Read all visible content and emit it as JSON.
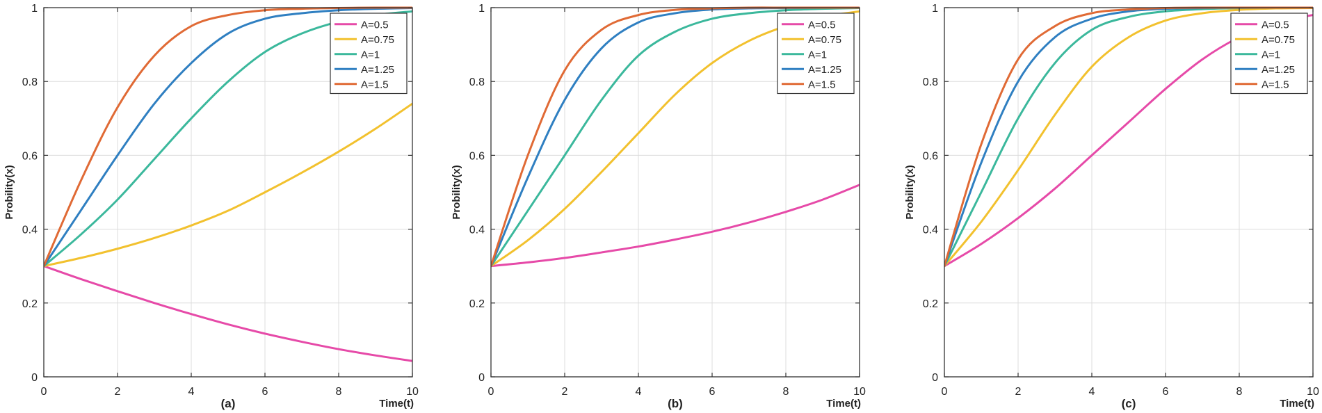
{
  "chart_data": [
    {
      "type": "line",
      "panel_label": "(a)",
      "xlabel": "Time(t)",
      "ylabel": "Probility(x)",
      "xlim": [
        0,
        10
      ],
      "ylim": [
        0,
        1
      ],
      "xticks": [
        "0",
        "2",
        "4",
        "6",
        "8",
        "10"
      ],
      "yticks": [
        "0",
        "0.2",
        "0.4",
        "0.6",
        "0.8",
        "1"
      ],
      "grid": true,
      "legend_position": "top-right",
      "x": [
        0,
        1,
        2,
        3,
        4,
        5,
        6,
        7,
        8,
        9,
        10
      ],
      "series": [
        {
          "name": "A=0.5",
          "color": "#e64aa8",
          "values": [
            0.3,
            0.265,
            0.232,
            0.2,
            0.17,
            0.142,
            0.117,
            0.095,
            0.075,
            0.058,
            0.043
          ]
        },
        {
          "name": "A=0.75",
          "color": "#f2c12e",
          "values": [
            0.3,
            0.322,
            0.347,
            0.376,
            0.41,
            0.45,
            0.5,
            0.553,
            0.61,
            0.672,
            0.74
          ]
        },
        {
          "name": "A=1",
          "color": "#3bb89c",
          "values": [
            0.3,
            0.385,
            0.48,
            0.59,
            0.7,
            0.8,
            0.88,
            0.93,
            0.962,
            0.98,
            0.99
          ]
        },
        {
          "name": "A=1.25",
          "color": "#2f7fc1",
          "values": [
            0.3,
            0.45,
            0.6,
            0.74,
            0.85,
            0.93,
            0.97,
            0.985,
            0.993,
            0.997,
            0.999
          ]
        },
        {
          "name": "A=1.5",
          "color": "#e06a35",
          "values": [
            0.3,
            0.53,
            0.73,
            0.87,
            0.95,
            0.98,
            0.993,
            0.997,
            0.999,
            1.0,
            1.0
          ]
        }
      ]
    },
    {
      "type": "line",
      "panel_label": "(b)",
      "xlabel": "Time(t)",
      "ylabel": "Probility(x)",
      "xlim": [
        0,
        10
      ],
      "ylim": [
        0,
        1
      ],
      "xticks": [
        "0",
        "2",
        "4",
        "6",
        "8",
        "10"
      ],
      "yticks": [
        "0",
        "0.2",
        "0.4",
        "0.6",
        "0.8",
        "1"
      ],
      "grid": true,
      "legend_position": "top-right",
      "x": [
        0,
        1,
        2,
        3,
        4,
        5,
        6,
        7,
        8,
        9,
        10
      ],
      "series": [
        {
          "name": "A=0.5",
          "color": "#e64aa8",
          "values": [
            0.3,
            0.31,
            0.322,
            0.337,
            0.353,
            0.372,
            0.393,
            0.418,
            0.447,
            0.48,
            0.52
          ]
        },
        {
          "name": "A=0.75",
          "color": "#f2c12e",
          "values": [
            0.3,
            0.37,
            0.455,
            0.555,
            0.66,
            0.765,
            0.85,
            0.91,
            0.95,
            0.975,
            0.99
          ]
        },
        {
          "name": "A=1",
          "color": "#3bb89c",
          "values": [
            0.3,
            0.45,
            0.6,
            0.75,
            0.87,
            0.935,
            0.97,
            0.985,
            0.993,
            0.997,
            0.999
          ]
        },
        {
          "name": "A=1.25",
          "color": "#2f7fc1",
          "values": [
            0.3,
            0.54,
            0.75,
            0.89,
            0.96,
            0.985,
            0.995,
            0.998,
            0.999,
            1.0,
            1.0
          ]
        },
        {
          "name": "A=1.5",
          "color": "#e06a35",
          "values": [
            0.3,
            0.6,
            0.83,
            0.94,
            0.98,
            0.994,
            0.998,
            1.0,
            1.0,
            1.0,
            1.0
          ]
        }
      ]
    },
    {
      "type": "line",
      "panel_label": "(c)",
      "xlabel": "Time(t)",
      "ylabel": "Probility(x)",
      "xlim": [
        0,
        10
      ],
      "ylim": [
        0,
        1
      ],
      "xticks": [
        "0",
        "2",
        "4",
        "6",
        "8",
        "10"
      ],
      "yticks": [
        "0",
        "0.2",
        "0.4",
        "0.6",
        "0.8",
        "1"
      ],
      "grid": true,
      "legend_position": "top-right",
      "x": [
        0,
        1,
        2,
        3,
        4,
        5,
        6,
        7,
        8,
        9,
        10
      ],
      "series": [
        {
          "name": "A=0.5",
          "color": "#e64aa8",
          "values": [
            0.3,
            0.36,
            0.43,
            0.51,
            0.6,
            0.69,
            0.78,
            0.86,
            0.92,
            0.96,
            0.98
          ]
        },
        {
          "name": "A=0.75",
          "color": "#f2c12e",
          "values": [
            0.3,
            0.42,
            0.56,
            0.71,
            0.84,
            0.92,
            0.965,
            0.985,
            0.994,
            0.998,
            0.999
          ]
        },
        {
          "name": "A=1",
          "color": "#3bb89c",
          "values": [
            0.3,
            0.5,
            0.7,
            0.85,
            0.94,
            0.975,
            0.99,
            0.996,
            0.999,
            1.0,
            1.0
          ]
        },
        {
          "name": "A=1.25",
          "color": "#2f7fc1",
          "values": [
            0.3,
            0.58,
            0.8,
            0.92,
            0.97,
            0.99,
            0.997,
            0.999,
            1.0,
            1.0,
            1.0
          ]
        },
        {
          "name": "A=1.5",
          "color": "#e06a35",
          "values": [
            0.3,
            0.63,
            0.86,
            0.95,
            0.985,
            0.995,
            0.999,
            1.0,
            1.0,
            1.0,
            1.0
          ]
        }
      ]
    }
  ]
}
